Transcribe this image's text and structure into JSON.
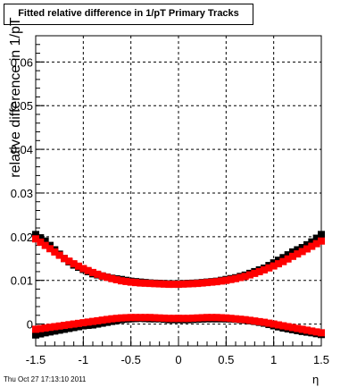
{
  "chart_data": {
    "type": "scatter",
    "title": "Fitted relative difference in 1/pT  Primary Tracks",
    "xlabel": "η",
    "ylabel": "relative difference in 1/pT",
    "xlim": [
      -1.5,
      1.5
    ],
    "ylim": [
      -0.005,
      0.066
    ],
    "grid": true,
    "x_ticks": [
      -1.5,
      -1,
      -0.5,
      0,
      0.5,
      1,
      1.5
    ],
    "x_tick_labels": [
      "-1.5",
      "-1",
      "-0.5",
      "0",
      "0.5",
      "1",
      "1.5"
    ],
    "y_ticks": [
      0,
      0.01,
      0.02,
      0.03,
      0.04,
      0.05,
      0.06
    ],
    "y_tick_labels": [
      "0",
      "0.01",
      "0.02",
      "0.03",
      "0.04",
      "0.05",
      "0.06"
    ],
    "series": [
      {
        "color": "#000000",
        "points": [
          [
            -1.5,
            0.0205
          ],
          [
            -1.4,
            0.019
          ],
          [
            -1.3,
            0.017
          ],
          [
            -1.2,
            0.015
          ],
          [
            -1.1,
            0.0135
          ],
          [
            -1.0,
            0.0125
          ],
          [
            -0.9,
            0.0115
          ],
          [
            -0.8,
            0.011
          ],
          [
            -0.7,
            0.0105
          ],
          [
            -0.6,
            0.0102
          ],
          [
            -0.5,
            0.0098
          ],
          [
            -0.4,
            0.0096
          ],
          [
            -0.3,
            0.0094
          ],
          [
            -0.2,
            0.0093
          ],
          [
            -0.1,
            0.0092
          ],
          [
            0.0,
            0.0092
          ],
          [
            0.1,
            0.0093
          ],
          [
            0.2,
            0.0094
          ],
          [
            0.3,
            0.0096
          ],
          [
            0.4,
            0.0098
          ],
          [
            0.5,
            0.0102
          ],
          [
            0.6,
            0.0106
          ],
          [
            0.7,
            0.0112
          ],
          [
            0.8,
            0.012
          ],
          [
            0.9,
            0.0128
          ],
          [
            1.0,
            0.014
          ],
          [
            1.1,
            0.0152
          ],
          [
            1.2,
            0.0165
          ],
          [
            1.3,
            0.0175
          ],
          [
            1.4,
            0.0188
          ],
          [
            1.5,
            0.0205
          ]
        ]
      },
      {
        "color": "#ff0000",
        "points": [
          [
            -1.5,
            0.0195
          ],
          [
            -1.4,
            0.018
          ],
          [
            -1.3,
            0.0165
          ],
          [
            -1.2,
            0.015
          ],
          [
            -1.1,
            0.0138
          ],
          [
            -1.0,
            0.0127
          ],
          [
            -0.9,
            0.0118
          ],
          [
            -0.8,
            0.011
          ],
          [
            -0.7,
            0.0104
          ],
          [
            -0.6,
            0.0099
          ],
          [
            -0.5,
            0.0096
          ],
          [
            -0.4,
            0.0094
          ],
          [
            -0.3,
            0.0093
          ],
          [
            -0.2,
            0.0092
          ],
          [
            -0.1,
            0.0091
          ],
          [
            0.0,
            0.0091
          ],
          [
            0.1,
            0.0092
          ],
          [
            0.2,
            0.0093
          ],
          [
            0.3,
            0.0095
          ],
          [
            0.4,
            0.0097
          ],
          [
            0.5,
            0.01
          ],
          [
            0.6,
            0.0104
          ],
          [
            0.7,
            0.0109
          ],
          [
            0.8,
            0.0116
          ],
          [
            0.9,
            0.0124
          ],
          [
            1.0,
            0.0133
          ],
          [
            1.1,
            0.0143
          ],
          [
            1.2,
            0.0155
          ],
          [
            1.3,
            0.0166
          ],
          [
            1.4,
            0.0178
          ],
          [
            1.5,
            0.019
          ]
        ]
      },
      {
        "color": "#000000",
        "points": [
          [
            -1.5,
            -0.0025
          ],
          [
            -1.4,
            -0.002
          ],
          [
            -1.3,
            -0.0016
          ],
          [
            -1.2,
            -0.0012
          ],
          [
            -1.1,
            -0.0008
          ],
          [
            -1.0,
            -0.0004
          ],
          [
            -0.9,
            -0.0002
          ],
          [
            -0.8,
            0.0002
          ],
          [
            -0.7,
            0.0006
          ],
          [
            -0.6,
            0.001
          ],
          [
            -0.5,
            0.0012
          ],
          [
            -0.4,
            0.0013
          ],
          [
            -0.3,
            0.0012
          ],
          [
            -0.2,
            0.0012
          ],
          [
            -0.1,
            0.001
          ],
          [
            0.0,
            0.001
          ],
          [
            0.1,
            0.001
          ],
          [
            0.2,
            0.0011
          ],
          [
            0.3,
            0.0012
          ],
          [
            0.4,
            0.0012
          ],
          [
            0.5,
            0.0012
          ],
          [
            0.6,
            0.0011
          ],
          [
            0.7,
            0.0009
          ],
          [
            0.8,
            0.0006
          ],
          [
            0.9,
            0.0002
          ],
          [
            1.0,
            -0.0004
          ],
          [
            1.1,
            -0.0009
          ],
          [
            1.2,
            -0.0013
          ],
          [
            1.3,
            -0.0017
          ],
          [
            1.4,
            -0.002
          ],
          [
            1.5,
            -0.0024
          ]
        ]
      },
      {
        "color": "#ff0000",
        "points": [
          [
            -1.5,
            -0.0012
          ],
          [
            -1.4,
            -0.0009
          ],
          [
            -1.3,
            -0.0006
          ],
          [
            -1.2,
            -0.0003
          ],
          [
            -1.1,
            0.0
          ],
          [
            -1.0,
            0.0003
          ],
          [
            -0.9,
            0.0006
          ],
          [
            -0.8,
            0.0009
          ],
          [
            -0.7,
            0.0012
          ],
          [
            -0.6,
            0.0014
          ],
          [
            -0.5,
            0.0015
          ],
          [
            -0.4,
            0.0015
          ],
          [
            -0.3,
            0.0015
          ],
          [
            -0.2,
            0.0014
          ],
          [
            -0.1,
            0.0013
          ],
          [
            0.0,
            0.0013
          ],
          [
            0.1,
            0.0013
          ],
          [
            0.2,
            0.0014
          ],
          [
            0.3,
            0.0015
          ],
          [
            0.4,
            0.0015
          ],
          [
            0.5,
            0.0014
          ],
          [
            0.6,
            0.0012
          ],
          [
            0.7,
            0.001
          ],
          [
            0.8,
            0.0007
          ],
          [
            0.9,
            0.0004
          ],
          [
            1.0,
            0.0
          ],
          [
            1.1,
            -0.0004
          ],
          [
            1.2,
            -0.0008
          ],
          [
            1.3,
            -0.0012
          ],
          [
            1.4,
            -0.0016
          ],
          [
            1.5,
            -0.002
          ]
        ]
      }
    ]
  },
  "footer_text": "Thu Oct 27 17:13:10 2011"
}
